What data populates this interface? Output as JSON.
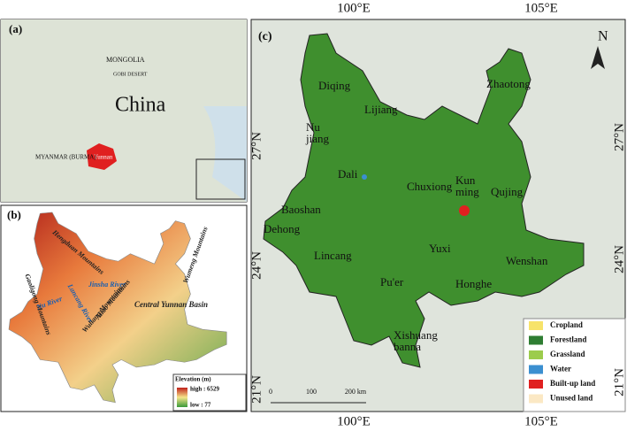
{
  "panel_a": {
    "label": "(a)",
    "mongolia": "MONGOLIA",
    "gobi": "GOBI DESERT",
    "china": "China",
    "yunnan": "Yunnan",
    "myanmar": "MYANMAR (BURMA)"
  },
  "panel_b": {
    "label": "(b)",
    "gaoligong": "Gaoligong Mountains",
    "hengduan": "Hengduan Mountains",
    "jinsha": "Jinsha River",
    "lancang": "Lancang River",
    "nu": "Nu River",
    "ailao": "Ailao Mountains",
    "wuliang": "Wuliang Mountains",
    "central": "Central Yunnan Basin",
    "wumeng": "Wumeng Mountains",
    "elevation_title": "Elevation (m)",
    "high": "high : 6529",
    "low": "low : 77"
  },
  "panel_c": {
    "label": "(c)",
    "north": "N",
    "top_lon": [
      "100°E",
      "105°E"
    ],
    "bottom_lon": [
      "100°E",
      "105°E"
    ],
    "left_lat": [
      "27°N",
      "24°N",
      "21°N"
    ],
    "right_lat": [
      "27°N",
      "24°N",
      "21°N"
    ],
    "regions": [
      "Diqing",
      "Nu jiang",
      "Lijiang",
      "Dali",
      "Baoshan",
      "Dehong",
      "Lincang",
      "Pu'er",
      "Xishuang banna",
      "Chuxiong",
      "Kun ming",
      "Yuxi",
      "Honghe",
      "Wenshan",
      "Qujing",
      "Zhaotong"
    ],
    "scale": [
      "0",
      "100",
      "200 km"
    ],
    "legend": [
      {
        "name": "Cropland",
        "color": "#f7e36a"
      },
      {
        "name": "Forestland",
        "color": "#2e7d32"
      },
      {
        "name": "Grassland",
        "color": "#9ccc4c"
      },
      {
        "name": "Water",
        "color": "#3b8fd0"
      },
      {
        "name": "Built-up land",
        "color": "#e02020"
      },
      {
        "name": "Unused land",
        "color": "#fbe8c4"
      }
    ]
  }
}
